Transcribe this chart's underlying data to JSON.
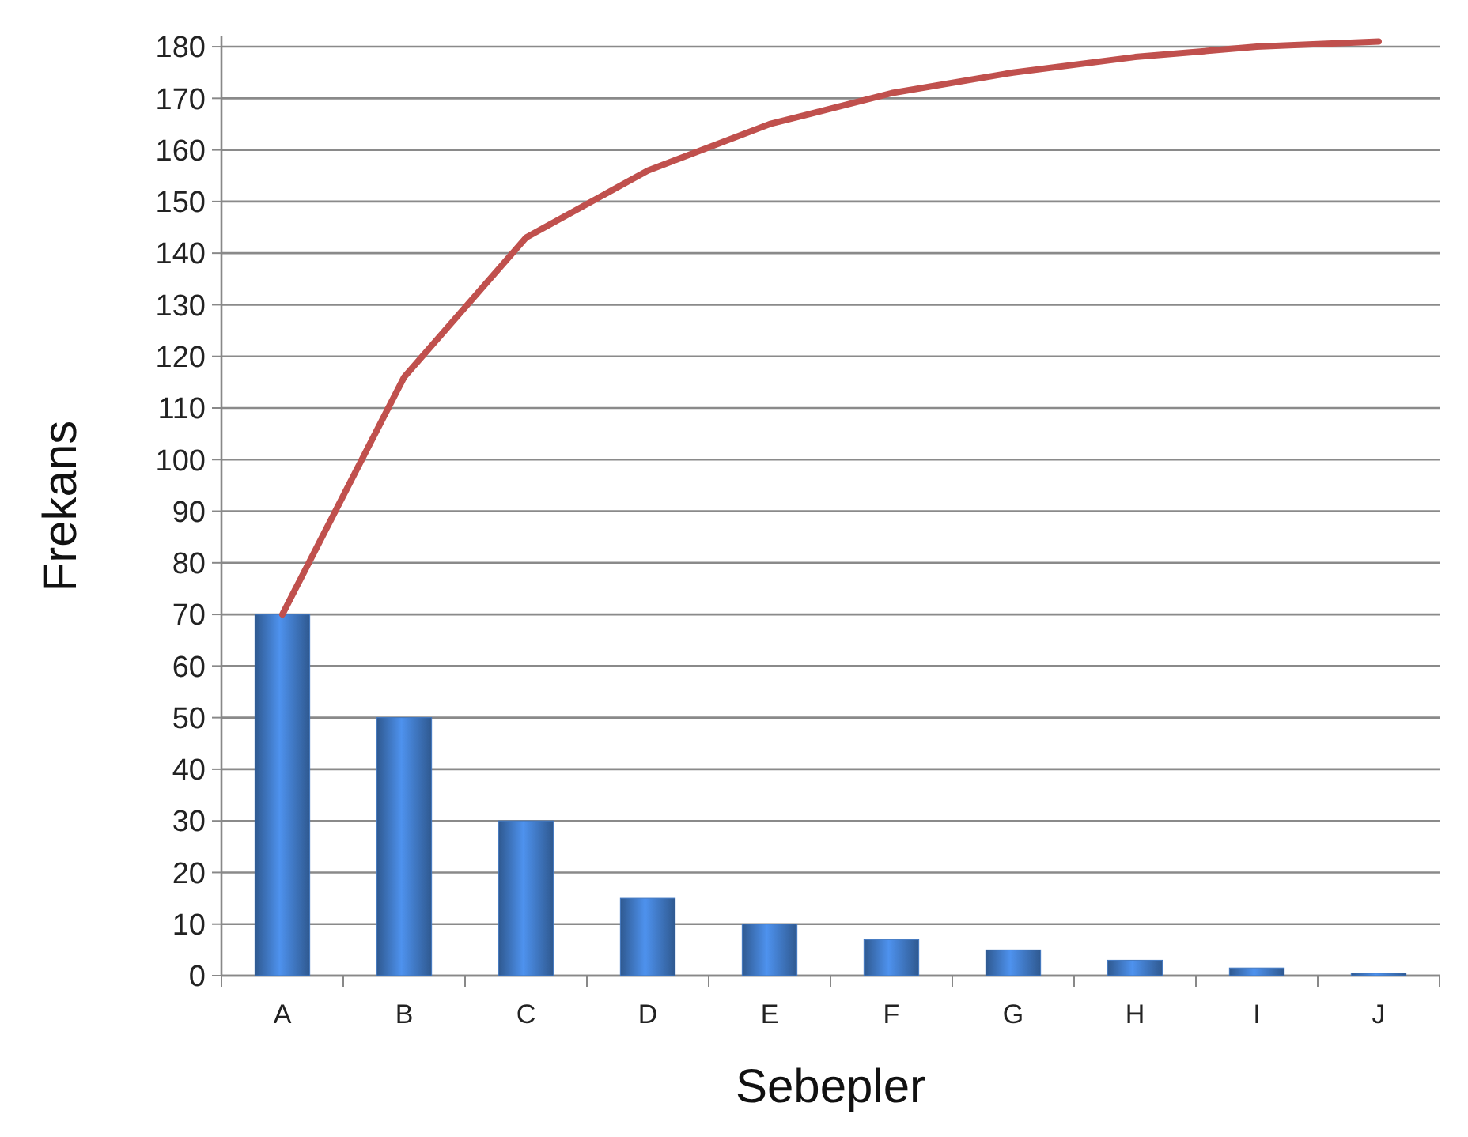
{
  "chart_data": {
    "type": "bar",
    "xlabel": "Sebepler",
    "ylabel": "Frekans",
    "categories": [
      "A",
      "B",
      "C",
      "D",
      "E",
      "F",
      "G",
      "H",
      "I",
      "J"
    ],
    "series": [
      {
        "color": "#3f76c0",
        "values": [
          70,
          50,
          30,
          15,
          10,
          7,
          5,
          3,
          1.5,
          0.5
        ]
      },
      {
        "type": "line",
        "color": "#c0504d",
        "values": [
          70,
          116,
          143,
          156,
          165,
          171,
          175,
          178,
          180,
          181
        ]
      }
    ],
    "ylim": [
      0,
      182
    ],
    "yticks": [
      0,
      10,
      20,
      30,
      40,
      50,
      60,
      70,
      80,
      90,
      100,
      110,
      120,
      130,
      140,
      150,
      160,
      170,
      180
    ],
    "grid": "y",
    "marker": "none",
    "line_style": "solid"
  }
}
